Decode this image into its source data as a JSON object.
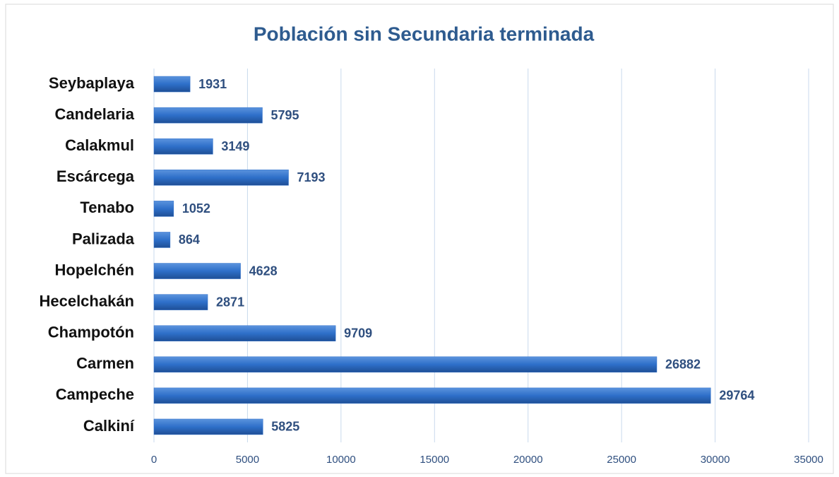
{
  "chart_data": {
    "type": "bar",
    "orientation": "horizontal",
    "title": "Población sin Secundaria terminada",
    "categories": [
      "Seybaplaya",
      "Candelaria",
      "Calakmul",
      "Escárcega",
      "Tenabo",
      "Palizada",
      "Hopelchén",
      "Hecelchakán",
      "Champotón",
      "Carmen",
      "Campeche",
      "Calkiní"
    ],
    "values": [
      1931,
      5795,
      3149,
      7193,
      1052,
      864,
      4628,
      2871,
      9709,
      26882,
      29764,
      5825
    ],
    "color": "#2e6fc9",
    "xlim": [
      0,
      35000
    ],
    "xticks": [
      0,
      5000,
      10000,
      15000,
      20000,
      25000,
      30000,
      35000
    ],
    "grid": true
  }
}
